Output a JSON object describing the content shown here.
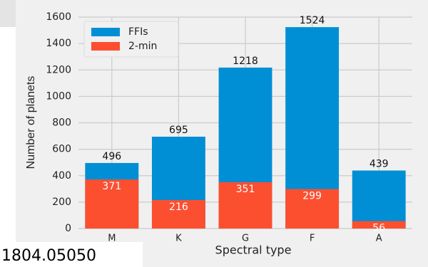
{
  "chart_data": {
    "type": "bar",
    "overlap": true,
    "xlabel": "Spectral type",
    "ylabel": "Number of planets",
    "categories": [
      "M",
      "K",
      "G",
      "F",
      "A"
    ],
    "series": [
      {
        "name": "FFIs",
        "color": "#008fd5",
        "values": [
          496,
          695,
          1218,
          1524,
          439
        ]
      },
      {
        "name": "2-min",
        "color": "#fc4f30",
        "values": [
          371,
          216,
          351,
          299,
          56
        ]
      }
    ],
    "ylim": [
      0,
      1600
    ],
    "yticks": [
      0,
      200,
      400,
      600,
      800,
      1000,
      1200,
      1400,
      1600
    ],
    "grid": true,
    "legend": "upper left"
  },
  "watermark": "1804.05050"
}
